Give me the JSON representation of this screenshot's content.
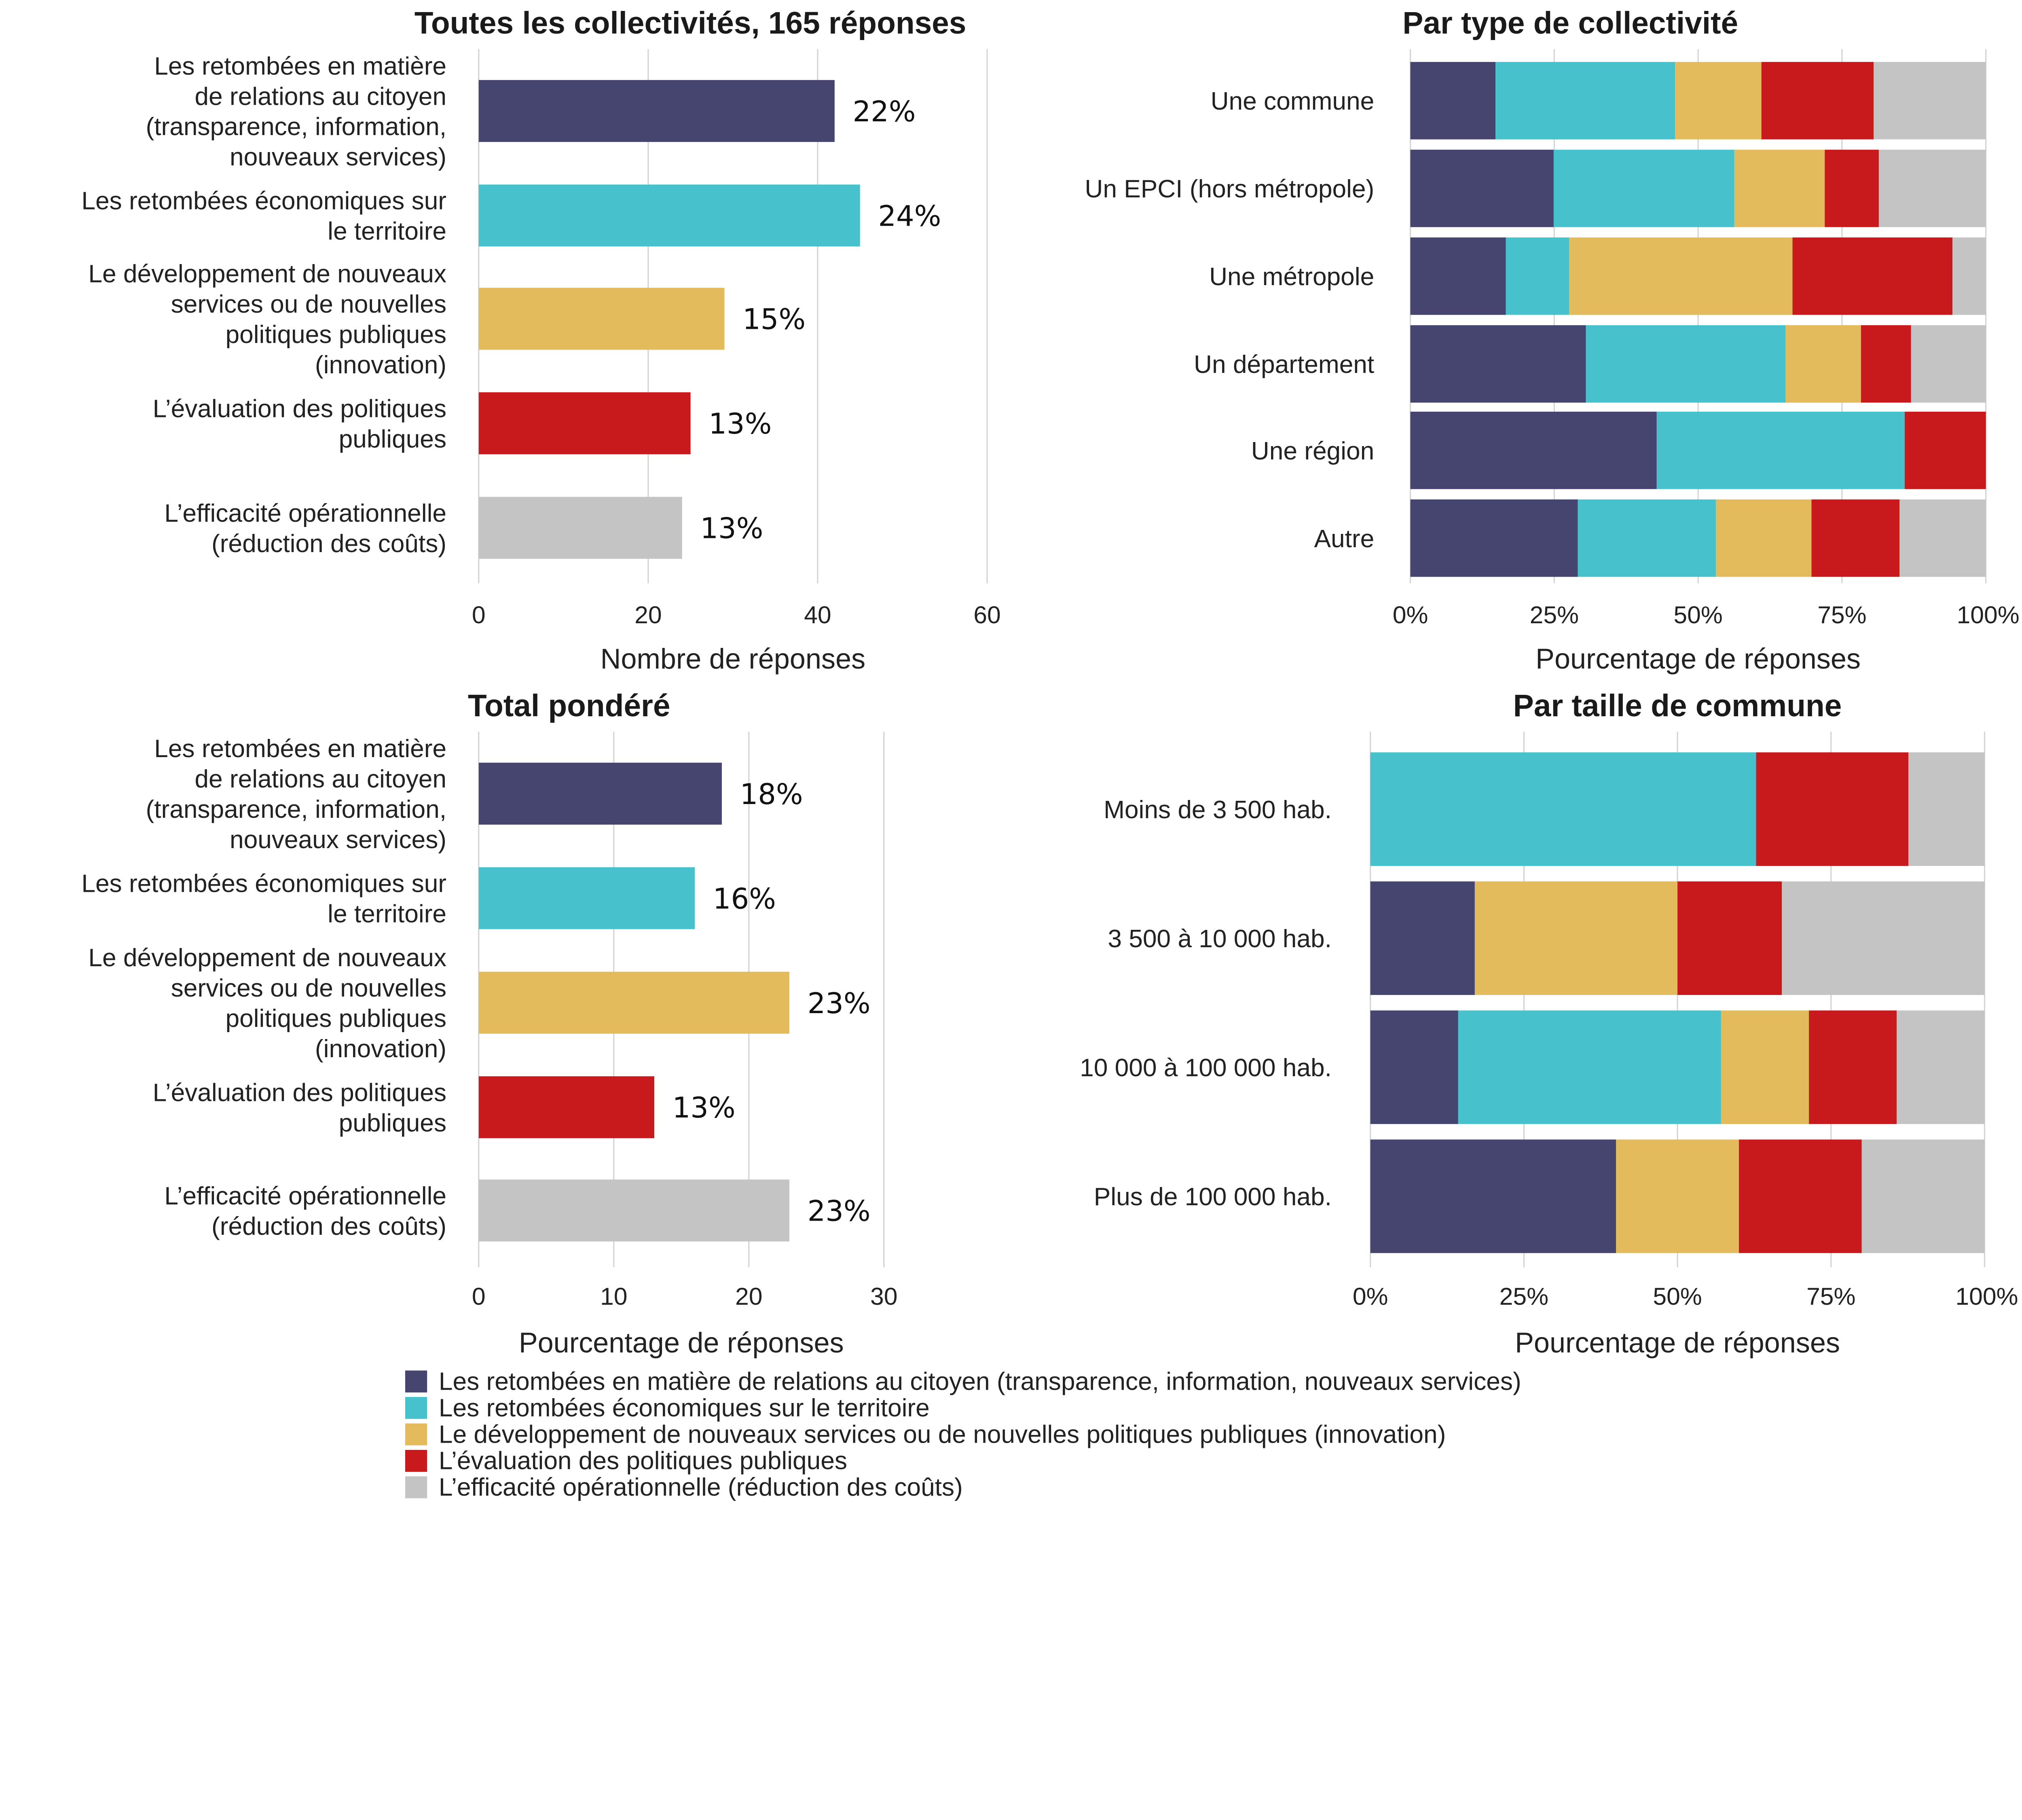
{
  "colors": [
    "#45456f",
    "#47c2cc",
    "#e3bb5c",
    "#c8191c",
    "#c4c4c4"
  ],
  "legend": [
    "Les retombées en matière de relations au citoyen (transparence, information, nouveaux services)",
    "Les retombées économiques sur le territoire",
    "Le développement de nouveaux services ou de nouvelles politiques publiques (innovation)",
    "L’évaluation des politiques publiques",
    "L’efficacité opérationnelle (réduction des coûts)"
  ],
  "chart_data": [
    {
      "type": "bar",
      "orientation": "horizontal",
      "title": "Toutes les collectivités, 165 réponses",
      "xlabel": "Nombre de réponses",
      "xlim": [
        0,
        60
      ],
      "xticks": [
        "0",
        "20",
        "40",
        "60"
      ],
      "grid": true,
      "categories": [
        [
          "Les retombées en matière",
          "de relations au citoyen",
          "(transparence, information,",
          "nouveaux services)"
        ],
        [
          "Les retombées économiques sur",
          "le territoire"
        ],
        [
          "Le développement de nouveaux",
          "services ou de nouvelles",
          "politiques publiques",
          "(innovation)"
        ],
        [
          "L’évaluation des politiques",
          "publiques"
        ],
        [
          "L’efficacité opérationnelle",
          "(réduction des coûts)"
        ]
      ],
      "values": [
        42,
        45,
        29,
        25,
        24
      ],
      "data_labels": [
        "22%",
        "24%",
        "15%",
        "13%",
        "13%"
      ]
    },
    {
      "type": "bar",
      "orientation": "horizontal",
      "stacked": "percent",
      "title": "Par type de collectivité",
      "xlabel": "Pourcentage de réponses",
      "xlim": [
        0,
        100
      ],
      "xticks": [
        "0%",
        "25%",
        "50%",
        "75%",
        "100%"
      ],
      "categories": [
        "Une commune",
        "Un EPCI (hors métropole)",
        "Une métropole",
        "Un département",
        "Une région",
        "Autre"
      ],
      "series_order": "legend",
      "values": [
        [
          14.8,
          31.2,
          15.0,
          19.5,
          19.5
        ],
        [
          24.9,
          31.4,
          15.7,
          9.4,
          18.6
        ],
        [
          16.6,
          11.0,
          38.8,
          27.8,
          5.8
        ],
        [
          30.5,
          34.7,
          13.1,
          8.7,
          13.0
        ],
        [
          42.8,
          43.1,
          0,
          14.1,
          0
        ],
        [
          29.1,
          24.0,
          16.6,
          15.3,
          15.0
        ]
      ]
    },
    {
      "type": "bar",
      "orientation": "horizontal",
      "title": "Total pondéré",
      "xlabel": "Pourcentage de réponses",
      "xlim": [
        0,
        30
      ],
      "xticks": [
        "0",
        "10",
        "20",
        "30"
      ],
      "grid": true,
      "categories": [
        [
          "Les retombées en matière",
          "de relations au citoyen",
          "(transparence, information,",
          "nouveaux services)"
        ],
        [
          "Les retombées économiques sur",
          "le territoire"
        ],
        [
          "Le développement de nouveaux",
          "services ou de nouvelles",
          "politiques publiques",
          "(innovation)"
        ],
        [
          "L’évaluation des politiques",
          "publiques"
        ],
        [
          "L’efficacité opérationnelle",
          "(réduction des coûts)"
        ]
      ],
      "values": [
        18,
        16,
        23,
        13,
        23
      ],
      "data_labels": [
        "18%",
        "16%",
        "23%",
        "13%",
        "23%"
      ]
    },
    {
      "type": "bar",
      "orientation": "horizontal",
      "stacked": "percent",
      "title": "Par taille de commune",
      "xlabel": "Pourcentage de réponses",
      "xlim": [
        0,
        100
      ],
      "xticks": [
        "0%",
        "25%",
        "50%",
        "75%",
        "100%"
      ],
      "categories": [
        "Moins de 3 500 hab.",
        "3 500 à 10 000 hab.",
        "10 000 à 100 000 hab.",
        "Plus de 100 000 hab."
      ],
      "values": [
        [
          0,
          62.8,
          0,
          24.8,
          12.4
        ],
        [
          17,
          0,
          33,
          17,
          33
        ],
        [
          14.3,
          42.8,
          14.3,
          14.3,
          14.3
        ],
        [
          40,
          0,
          20,
          20,
          20
        ]
      ]
    }
  ]
}
